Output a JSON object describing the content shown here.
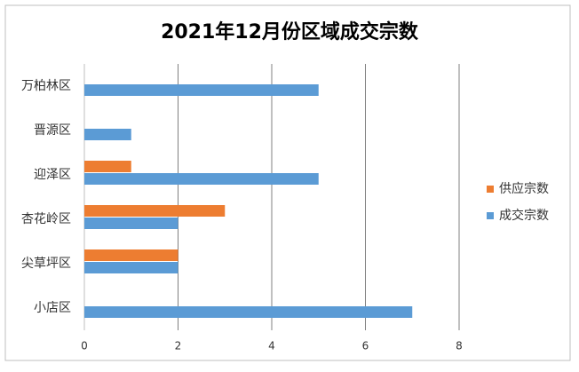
{
  "chart_data": {
    "type": "bar",
    "orientation": "horizontal",
    "title": "2021年12月份区域成交宗数",
    "categories": [
      "万柏林区",
      "晋源区",
      "迎泽区",
      "杏花岭区",
      "尖草坪区",
      "小店区"
    ],
    "series": [
      {
        "name": "供应宗数",
        "color": "#ed7d31",
        "values": [
          0,
          0,
          1,
          3,
          2,
          0
        ]
      },
      {
        "name": "成交宗数",
        "color": "#5b9bd5",
        "values": [
          5,
          1,
          5,
          2,
          2,
          7
        ]
      }
    ],
    "xlim": [
      0,
      8
    ],
    "xticks": [
      0,
      2,
      4,
      6,
      8
    ],
    "grid": true,
    "legend": "right"
  }
}
